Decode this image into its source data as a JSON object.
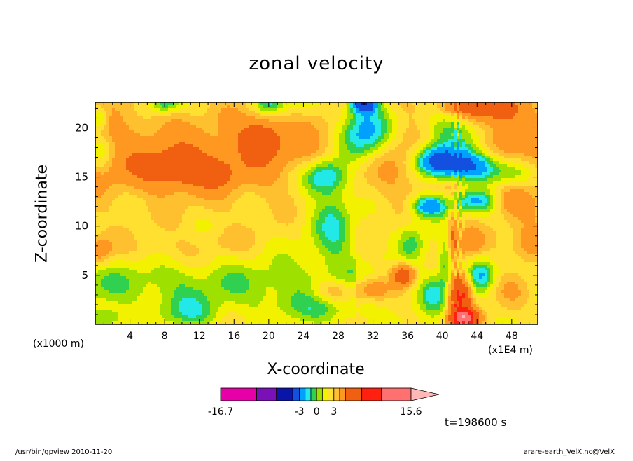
{
  "chart_data": {
    "type": "heatmap",
    "title": "zonal velocity",
    "xlabel": "X-coordinate",
    "ylabel": "Z-coordinate",
    "x_unit_label": "(x1E4 m)",
    "y_unit_label": "(x1000 m)",
    "x_ticks": [
      4,
      8,
      12,
      16,
      20,
      24,
      28,
      32,
      36,
      40,
      44,
      48
    ],
    "y_ticks": [
      5,
      10,
      15,
      20
    ],
    "xlim": [
      0,
      51
    ],
    "ylim": [
      0,
      22.6
    ],
    "colorbar": {
      "labels": [
        "-16.7",
        "-3",
        "0",
        "3",
        "15.6"
      ],
      "colors": [
        "#e600a8",
        "#7a10b8",
        "#0a14a8",
        "#1450e0",
        "#00a0ff",
        "#22e8e8",
        "#30d050",
        "#9ee000",
        "#f2f200",
        "#ffe030",
        "#ffc030",
        "#ff9820",
        "#f06010",
        "#ff2010",
        "#ff7070",
        "#ffb8b8"
      ]
    },
    "contour_levels": [
      -16.7,
      -13,
      -9,
      -5,
      -3,
      -2,
      -1,
      0,
      1,
      2,
      3,
      5,
      9,
      13,
      15.6
    ],
    "time_label": "t=198600 s"
  },
  "footer": {
    "left": "/usr/bin/gpview   2010-11-20",
    "right": "arare-earth_VelX.nc@VelX"
  }
}
